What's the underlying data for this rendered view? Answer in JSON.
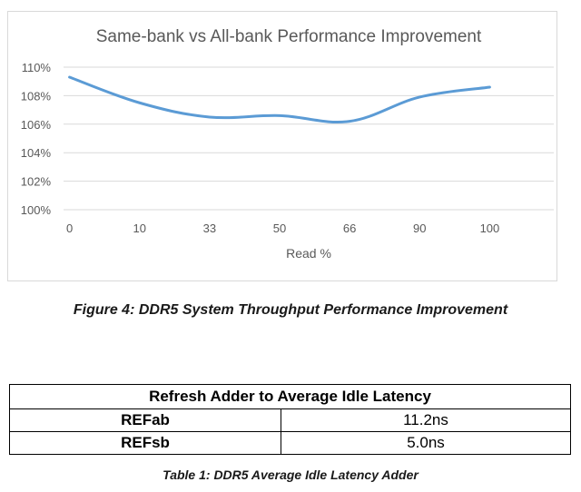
{
  "chart_data": {
    "type": "line",
    "title": "Same-bank vs All-bank Performance Improvement",
    "xlabel": "Read %",
    "ylabel": "",
    "categories": [
      "0",
      "10",
      "33",
      "50",
      "66",
      "90",
      "100"
    ],
    "series": [
      {
        "values": [
          109.3,
          107.5,
          106.5,
          106.6,
          106.2,
          107.9,
          108.6
        ]
      }
    ],
    "ylim": [
      100,
      110
    ],
    "yticks": [
      "100%",
      "102%",
      "104%",
      "106%",
      "108%",
      "110%"
    ],
    "ytick_values": [
      100,
      102,
      104,
      106,
      108,
      110
    ],
    "grid": "horizontal",
    "line_color": "#5b9bd5",
    "grid_color": "#d9d9d9"
  },
  "figure_caption": "Figure 4:  DDR5 System Throughput Performance Improvement",
  "table": {
    "header": "Refresh Adder to Average Idle Latency",
    "rows": [
      {
        "label": "REFab",
        "value": "11.2ns"
      },
      {
        "label": "REFsb",
        "value": "5.0ns"
      }
    ],
    "caption": "Table 1:  DDR5 Average Idle Latency Adder"
  }
}
